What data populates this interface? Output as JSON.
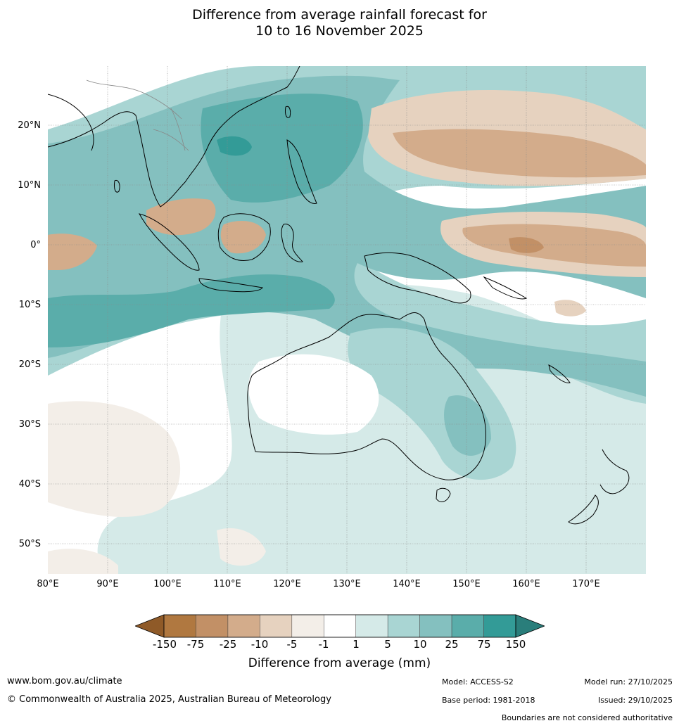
{
  "title": {
    "line1": "Difference from average rainfall forecast for",
    "line2": "10 to 16 November 2025"
  },
  "map": {
    "lat_labels": [
      "20°N",
      "10°N",
      "0°",
      "10°S",
      "20°S",
      "30°S",
      "40°S",
      "50°S"
    ],
    "lon_labels": [
      "80°E",
      "90°E",
      "100°E",
      "110°E",
      "120°E",
      "130°E",
      "140°E",
      "150°E",
      "160°E",
      "170°E"
    ],
    "lon_range": [
      80,
      180
    ],
    "lat_range": [
      -55,
      30
    ]
  },
  "colorbar": {
    "title": "Difference from average (mm)",
    "ticks": [
      "-150",
      "-75",
      "-25",
      "-10",
      "-5",
      "-1",
      "1",
      "5",
      "10",
      "25",
      "75",
      "150"
    ],
    "colors": [
      "#8f5a28",
      "#b07840",
      "#c29066",
      "#d3ac8b",
      "#e6d2bf",
      "#f3eee8",
      "#ffffff",
      "#d5eae8",
      "#a9d5d3",
      "#84c0bf",
      "#5aadaa",
      "#339b97",
      "#2a7e7b"
    ]
  },
  "footer": {
    "website": "www.bom.gov.au/climate",
    "copyright": "© Commonwealth of Australia 2025, Australian Bureau of Meteorology",
    "model": "Model: ACCESS-S2",
    "base_period": "Base period: 1981-2018",
    "model_run": "Model run: 27/10/2025",
    "issued": "Issued: 29/10/2025",
    "disclaimer": "Boundaries are not considered authoritative"
  }
}
